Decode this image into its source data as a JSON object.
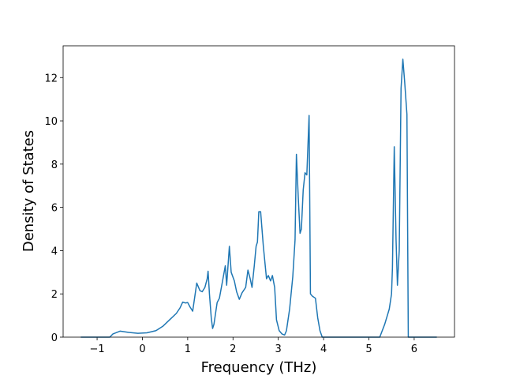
{
  "chart_data": {
    "type": "line",
    "x_label": "Frequency (THz)",
    "y_label": "Density of States",
    "xlim": [
      -1.75,
      6.89
    ],
    "ylim": [
      0,
      13.47
    ],
    "xticks": [
      {
        "value": -1,
        "label": "−1"
      },
      0,
      1,
      2,
      3,
      4,
      5,
      6
    ],
    "yticks": [
      0,
      2,
      4,
      6,
      8,
      10,
      12
    ],
    "color": "#1f77b4",
    "x": [
      -1.36,
      -0.72,
      -0.65,
      -0.49,
      -0.3,
      -0.1,
      0.1,
      0.3,
      0.45,
      0.6,
      0.75,
      0.83,
      0.89,
      0.95,
      1.0,
      1.05,
      1.11,
      1.2,
      1.27,
      1.32,
      1.38,
      1.43,
      1.45,
      1.48,
      1.52,
      1.55,
      1.58,
      1.65,
      1.7,
      1.77,
      1.83,
      1.86,
      1.92,
      1.96,
      2.03,
      2.08,
      2.14,
      2.2,
      2.28,
      2.33,
      2.38,
      2.42,
      2.47,
      2.51,
      2.54,
      2.57,
      2.61,
      2.67,
      2.74,
      2.78,
      2.83,
      2.87,
      2.92,
      2.96,
      3.02,
      3.08,
      3.14,
      3.18,
      3.25,
      3.32,
      3.37,
      3.4,
      3.44,
      3.48,
      3.51,
      3.55,
      3.59,
      3.63,
      3.68,
      3.71,
      3.75,
      3.82,
      3.87,
      3.92,
      3.97,
      5.24,
      5.35,
      5.45,
      5.5,
      5.52,
      5.56,
      5.6,
      5.63,
      5.67,
      5.71,
      5.75,
      5.79,
      5.84,
      5.87,
      6.5
    ],
    "values": [
      0,
      0,
      0.15,
      0.28,
      0.22,
      0.18,
      0.2,
      0.3,
      0.5,
      0.8,
      1.1,
      1.35,
      1.62,
      1.58,
      1.6,
      1.4,
      1.2,
      2.5,
      2.15,
      2.1,
      2.3,
      2.7,
      3.05,
      2.0,
      0.9,
      0.4,
      0.6,
      1.6,
      1.8,
      2.6,
      3.3,
      2.4,
      4.2,
      3.0,
      2.6,
      2.1,
      1.75,
      2.05,
      2.3,
      3.1,
      2.7,
      2.3,
      3.3,
      4.2,
      4.4,
      5.8,
      5.8,
      4.2,
      2.7,
      2.85,
      2.6,
      2.85,
      2.3,
      0.8,
      0.3,
      0.15,
      0.1,
      0.3,
      1.3,
      2.8,
      4.5,
      8.45,
      6.5,
      4.8,
      5.0,
      6.8,
      7.6,
      7.5,
      10.25,
      2.0,
      1.9,
      1.8,
      0.9,
      0.3,
      0,
      0,
      0.6,
      1.3,
      2.0,
      3.2,
      8.8,
      4.5,
      2.4,
      4.0,
      11.5,
      12.85,
      11.8,
      10.3,
      0,
      0
    ]
  }
}
